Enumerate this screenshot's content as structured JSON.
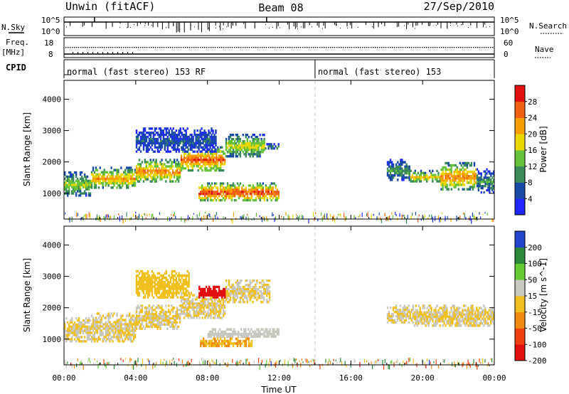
{
  "header": {
    "station": "Unwin (fitACF)",
    "beam": "Beam 08",
    "date": "27/Sep/2010"
  },
  "strip_labels": {
    "nsky": "N.Sky",
    "nsearch": "N.Search",
    "freq": "Freq.",
    "freq_unit": "[MHz]",
    "nave": "Nave",
    "cpid": "CPID",
    "noise_ticks_left": [
      "10^5",
      "10^0"
    ],
    "noise_ticks_right": [
      "10^5",
      "10^0"
    ],
    "freq_ticks_left": [
      "18",
      "8"
    ],
    "nave_ticks_right": [
      "60",
      "0"
    ]
  },
  "cpid_segments": [
    {
      "label": "normal (fast stereo) 153 RF",
      "start_hour": 0,
      "end_hour": 14
    },
    {
      "label": "normal (fast stereo) 153",
      "start_hour": 14,
      "end_hour": 24
    }
  ],
  "chart_data": {
    "type": "heatmap",
    "xlabel": "Time UT",
    "ylabel": "Slant Range [km]",
    "x_range_hours": [
      0,
      24
    ],
    "x_ticks": [
      "00:00",
      "04:00",
      "08:00",
      "12:00",
      "16:00",
      "20:00",
      "00:00"
    ],
    "y_range_km": [
      180,
      4600
    ],
    "y_ticks": [
      1000,
      2000,
      3000,
      4000
    ],
    "panels": [
      {
        "name": "power",
        "colorbar_label": "Power [dB]",
        "colorbar_ticks": [
          4,
          8,
          12,
          16,
          20,
          24,
          28
        ],
        "color_range": [
          0,
          32
        ],
        "colors": [
          "#1e28ff",
          "#1a4aa8",
          "#3a8a5a",
          "#66c23a",
          "#e8d800",
          "#f5a000",
          "#f06010",
          "#e01010"
        ],
        "regions": [
          {
            "t": [
              0.0,
              1.5
            ],
            "r": [
              900,
              1700
            ],
            "v": 14
          },
          {
            "t": [
              1.5,
              4.0
            ],
            "r": [
              1150,
              1850
            ],
            "v": 20
          },
          {
            "t": [
              4.0,
              6.5
            ],
            "r": [
              1350,
              2100
            ],
            "v": 22
          },
          {
            "t": [
              6.5,
              9.0
            ],
            "r": [
              1700,
              2500
            ],
            "v": 24
          },
          {
            "t": [
              9.0,
              11.2
            ],
            "r": [
              2150,
              2900
            ],
            "v": 16
          },
          {
            "t": [
              4.0,
              8.5
            ],
            "r": [
              2300,
              3100
            ],
            "v": 6
          },
          {
            "t": [
              7.5,
              12.0
            ],
            "r": [
              750,
              1350
            ],
            "v": 26
          },
          {
            "t": [
              11.2,
              12.0
            ],
            "r": [
              2400,
              2600
            ],
            "v": 8
          },
          {
            "t": [
              18.0,
              19.3
            ],
            "r": [
              1400,
              2100
            ],
            "v": 10
          },
          {
            "t": [
              19.3,
              21.0
            ],
            "r": [
              1350,
              1750
            ],
            "v": 18
          },
          {
            "t": [
              21.0,
              23.0
            ],
            "r": [
              1100,
              2000
            ],
            "v": 22
          },
          {
            "t": [
              23.0,
              24.0
            ],
            "r": [
              1000,
              1800
            ],
            "v": 10
          }
        ]
      },
      {
        "name": "velocity",
        "colorbar_label": "Velocity [m s^-1]",
        "colorbar_ticks": [
          200,
          100,
          50,
          15,
          -15,
          -50,
          -100,
          -200
        ],
        "color_range": [
          -250,
          250
        ],
        "colors": [
          "#e01010",
          "#f04010",
          "#f08a10",
          "#f0c020",
          "#c8c8c0",
          "#66cc33",
          "#2a8a3a",
          "#2244cc"
        ],
        "regions": [
          {
            "t": [
              0.0,
              1.5
            ],
            "r": [
              900,
              1700
            ],
            "v": 0
          },
          {
            "t": [
              1.5,
              4.0
            ],
            "r": [
              900,
              1850
            ],
            "v": 0
          },
          {
            "t": [
              4.0,
              6.5
            ],
            "r": [
              1300,
              2100
            ],
            "v": 0
          },
          {
            "t": [
              6.5,
              9.0
            ],
            "r": [
              1650,
              2500
            ],
            "v": 0
          },
          {
            "t": [
              9.0,
              11.5
            ],
            "r": [
              2150,
              2900
            ],
            "v": 0
          },
          {
            "t": [
              4.0,
              7.0
            ],
            "r": [
              2300,
              3200
            ],
            "v": -40
          },
          {
            "t": [
              7.5,
              9.0
            ],
            "r": [
              2300,
              2700
            ],
            "v": -220
          },
          {
            "t": [
              8.0,
              12.0
            ],
            "r": [
              1050,
              1350
            ],
            "v": 40
          },
          {
            "t": [
              7.5,
              10.5
            ],
            "r": [
              750,
              1050
            ],
            "v": -60
          },
          {
            "t": [
              18.0,
              19.5
            ],
            "r": [
              1500,
              2100
            ],
            "v": 0
          },
          {
            "t": [
              19.5,
              24.0
            ],
            "r": [
              1400,
              2100
            ],
            "v": 0
          }
        ]
      }
    ]
  }
}
